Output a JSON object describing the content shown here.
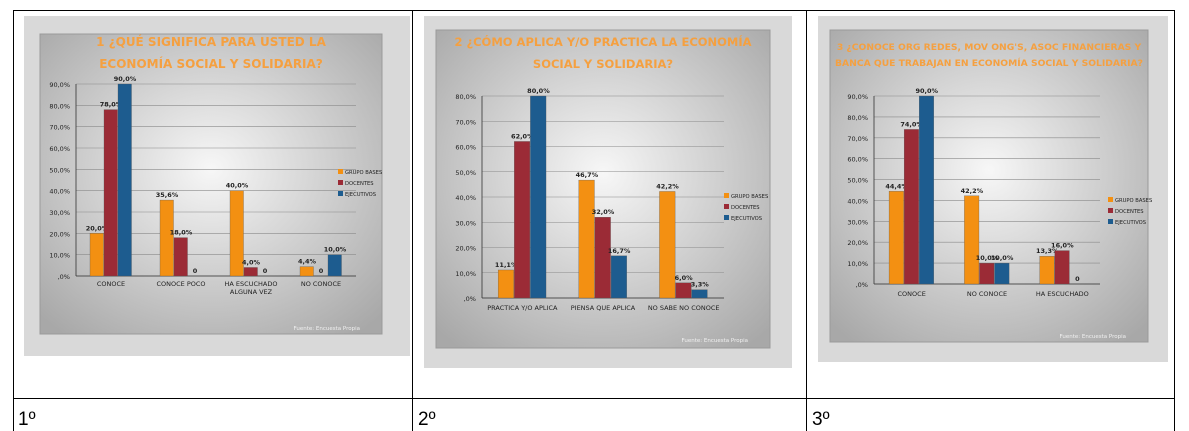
{
  "colors": {
    "series": [
      "#F39012",
      "#9B2B36",
      "#1D5C8F"
    ]
  },
  "captions": [
    "1º",
    "2º",
    "3º"
  ],
  "chart_data": [
    {
      "type": "bar",
      "title": "1 ¿QUÉ SIGNIFICA PARA USTED LA ECONOMÍA SOCIAL Y SOLIDARIA?",
      "title_lines": [
        "1 ¿QUÉ SIGNIFICA PARA USTED LA",
        "ECONOMÍA SOCIAL Y SOLIDARIA?"
      ],
      "categories": [
        "CONOCE",
        "CONOCE POCO",
        "HA ESCUCHADO ALGUNA VEZ",
        "NO CONOCE"
      ],
      "category_lines": [
        [
          "CONOCE"
        ],
        [
          "CONOCE POCO"
        ],
        [
          "HA ESCUCHADO",
          "ALGUNA VEZ"
        ],
        [
          "NO CONOCE"
        ]
      ],
      "series": [
        {
          "name": "GRUPO BASES",
          "values": [
            20.0,
            35.6,
            40.0,
            4.4
          ]
        },
        {
          "name": "DOCENTES",
          "values": [
            78.0,
            18.0,
            4.0,
            0
          ]
        },
        {
          "name": "EJECUTIVOS",
          "values": [
            90.0,
            0,
            0,
            10.0
          ]
        }
      ],
      "data_labels": [
        [
          "20,0%",
          "35,6%",
          "40,0%",
          "4,4%"
        ],
        [
          "78,0%",
          "18,0%",
          "4,0%",
          "0"
        ],
        [
          "90,0%",
          "0",
          "0",
          "10,0%"
        ]
      ],
      "ylim": [
        0,
        90
      ],
      "yticks": [
        0,
        10,
        20,
        30,
        40,
        50,
        60,
        70,
        80,
        90
      ],
      "ytick_labels": [
        ",0%",
        "10,0%",
        "20,0%",
        "30,0%",
        "40,0%",
        "50,0%",
        "60,0%",
        "70,0%",
        "80,0%",
        "90,0%"
      ],
      "legend": [
        "GRUPO BASES",
        "DOCENTES",
        "EJECUTIVOS"
      ],
      "legend_position": "right",
      "source": "Fuente: Encuesta Propia",
      "grid": true
    },
    {
      "type": "bar",
      "title": "2 ¿CÓMO APLICA Y/O PRACTICA LA ECONOMÍA SOCIAL Y SOLIDARIA?",
      "title_lines": [
        "2 ¿CÓMO APLICA Y/O PRACTICA LA ECONOMÍA",
        "SOCIAL Y SOLIDARIA?"
      ],
      "categories": [
        "PRACTICA Y/O APLICA",
        "PIENSA QUE APLICA",
        "NO SABE NO CONOCE"
      ],
      "category_lines": [
        [
          "PRACTICA Y/O APLICA"
        ],
        [
          "PIENSA QUE APLICA"
        ],
        [
          "NO SABE NO CONOCE"
        ]
      ],
      "series": [
        {
          "name": "GRUPO BASES",
          "values": [
            11.1,
            46.7,
            42.2
          ]
        },
        {
          "name": "DOCENTES",
          "values": [
            62.0,
            32.0,
            6.0
          ]
        },
        {
          "name": "EJECUTIVOS",
          "values": [
            80.0,
            16.7,
            3.3
          ]
        }
      ],
      "data_labels": [
        [
          "11,1%",
          "46,7%",
          "42,2%"
        ],
        [
          "62,0%",
          "32,0%",
          "6,0%"
        ],
        [
          "80,0%",
          "16,7%",
          "3,3%"
        ]
      ],
      "ylim": [
        0,
        80
      ],
      "yticks": [
        0,
        10,
        20,
        30,
        40,
        50,
        60,
        70,
        80
      ],
      "ytick_labels": [
        ",0%",
        "10,0%",
        "20,0%",
        "30,0%",
        "40,0%",
        "50,0%",
        "60,0%",
        "70,0%",
        "80,0%"
      ],
      "legend": [
        "GRUPO BASES",
        "DOCENTES",
        "EJECUTIVOS"
      ],
      "legend_position": "right",
      "source": "Fuente: Encuesta Propia",
      "grid": true
    },
    {
      "type": "bar",
      "title": "3 ¿CONOCE ORG REDES, MOV ONG'S, ASOC FINANCIERAS Y BANCA QUE TRABAJAN EN ECONOMÍA SOCIAL Y SOLIDARIA?",
      "title_lines": [
        "3 ¿CONOCE ORG REDES, MOV ONG'S, ASOC FINANCIERAS Y",
        "BANCA QUE TRABAJAN EN ECONOMÍA SOCIAL Y SOLIDARIA?"
      ],
      "categories": [
        "CONOCE",
        "NO CONOCE",
        "HA ESCUCHADO"
      ],
      "category_lines": [
        [
          "CONOCE"
        ],
        [
          "NO CONOCE"
        ],
        [
          "HA ESCUCHADO"
        ]
      ],
      "series": [
        {
          "name": "GRUPO BASES",
          "values": [
            44.4,
            42.2,
            13.3
          ]
        },
        {
          "name": "DOCENTES",
          "values": [
            74.0,
            10.0,
            16.0
          ]
        },
        {
          "name": "EJECUTIVOS",
          "values": [
            90.0,
            10.0,
            0
          ]
        }
      ],
      "data_labels": [
        [
          "44,4%",
          "42,2%",
          "13,3%"
        ],
        [
          "74,0%",
          "10,0%",
          "16,0%"
        ],
        [
          "90,0%",
          "10,0%",
          "0"
        ]
      ],
      "ylim": [
        0,
        90
      ],
      "yticks": [
        0,
        10,
        20,
        30,
        40,
        50,
        60,
        70,
        80,
        90
      ],
      "ytick_labels": [
        ",0%",
        "10,0%",
        "20,0%",
        "30,0%",
        "40,0%",
        "50,0%",
        "60,0%",
        "70,0%",
        "80,0%",
        "90,0%"
      ],
      "legend": [
        "GRUPO BASES",
        "DOCENTES",
        "EJECUTIVOS"
      ],
      "legend_position": "right",
      "source": "Fuente: Encuesta Propia",
      "grid": true
    }
  ]
}
